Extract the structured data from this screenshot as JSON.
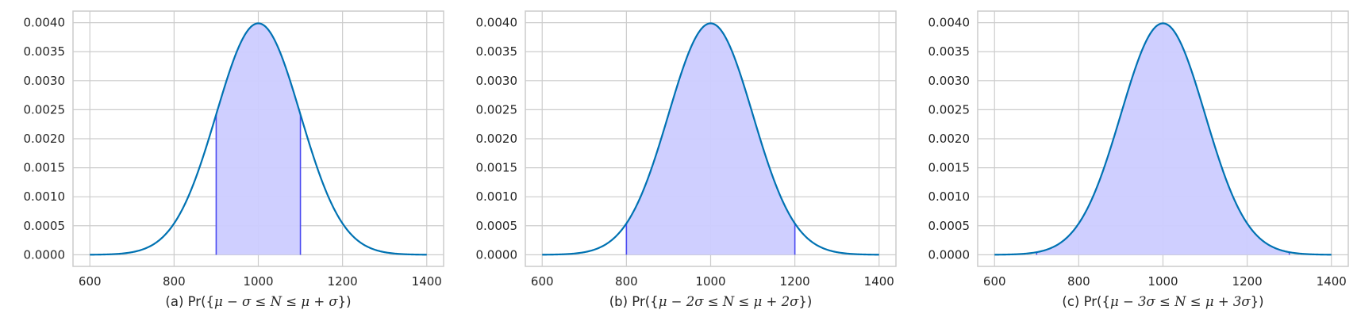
{
  "chart_data": [
    {
      "type": "area",
      "distribution": {
        "mean": 1000,
        "sd": 100
      },
      "x_range": [
        600,
        1400
      ],
      "shade_range": [
        900,
        1100
      ],
      "xlim": [
        560,
        1440
      ],
      "ylim": [
        -0.0002,
        0.0042
      ],
      "xticks": [
        600,
        800,
        1000,
        1200,
        1400
      ],
      "yticks": [
        0.0,
        0.0005,
        0.001,
        0.0015,
        0.002,
        0.0025,
        0.003,
        0.0035,
        0.004
      ],
      "xtick_labels": [
        "600",
        "800",
        "1000",
        "1200",
        "1400"
      ],
      "ytick_labels": [
        "0.0000",
        "0.0005",
        "0.0010",
        "0.0015",
        "0.0020",
        "0.0025",
        "0.0030",
        "0.0035",
        "0.0040"
      ],
      "xlabel": {
        "prefix": "(a) Pr({",
        "math": "μ − σ ≤ N ≤ μ + σ",
        "suffix": "})"
      },
      "grid": true
    },
    {
      "type": "area",
      "distribution": {
        "mean": 1000,
        "sd": 100
      },
      "x_range": [
        600,
        1400
      ],
      "shade_range": [
        800,
        1200
      ],
      "xlim": [
        560,
        1440
      ],
      "ylim": [
        -0.0002,
        0.0042
      ],
      "xticks": [
        600,
        800,
        1000,
        1200,
        1400
      ],
      "yticks": [
        0.0,
        0.0005,
        0.001,
        0.0015,
        0.002,
        0.0025,
        0.003,
        0.0035,
        0.004
      ],
      "xtick_labels": [
        "600",
        "800",
        "1000",
        "1200",
        "1400"
      ],
      "ytick_labels": [
        "0.0000",
        "0.0005",
        "0.0010",
        "0.0015",
        "0.0020",
        "0.0025",
        "0.0030",
        "0.0035",
        "0.0040"
      ],
      "xlabel": {
        "prefix": "(b) Pr({",
        "math": "μ − 2σ ≤ N ≤ μ + 2σ",
        "suffix": "})"
      },
      "grid": true
    },
    {
      "type": "area",
      "distribution": {
        "mean": 1000,
        "sd": 100
      },
      "x_range": [
        600,
        1400
      ],
      "shade_range": [
        700,
        1300
      ],
      "xlim": [
        560,
        1440
      ],
      "ylim": [
        -0.0002,
        0.0042
      ],
      "xticks": [
        600,
        800,
        1000,
        1200,
        1400
      ],
      "yticks": [
        0.0,
        0.0005,
        0.001,
        0.0015,
        0.002,
        0.0025,
        0.003,
        0.0035,
        0.004
      ],
      "xtick_labels": [
        "600",
        "800",
        "1000",
        "1200",
        "1400"
      ],
      "ytick_labels": [
        "0.0000",
        "0.0005",
        "0.0010",
        "0.0015",
        "0.0020",
        "0.0025",
        "0.0030",
        "0.0035",
        "0.0040"
      ],
      "xlabel": {
        "prefix": "(c) Pr({",
        "math": "μ − 3σ ≤ N ≤ μ + 3σ",
        "suffix": "})"
      },
      "grid": true
    }
  ],
  "colors": {
    "curve": "#0072b2",
    "fill": "#ccccff",
    "boundary": "#4a4af0",
    "grid": "#cccccc",
    "text": "#262626"
  }
}
